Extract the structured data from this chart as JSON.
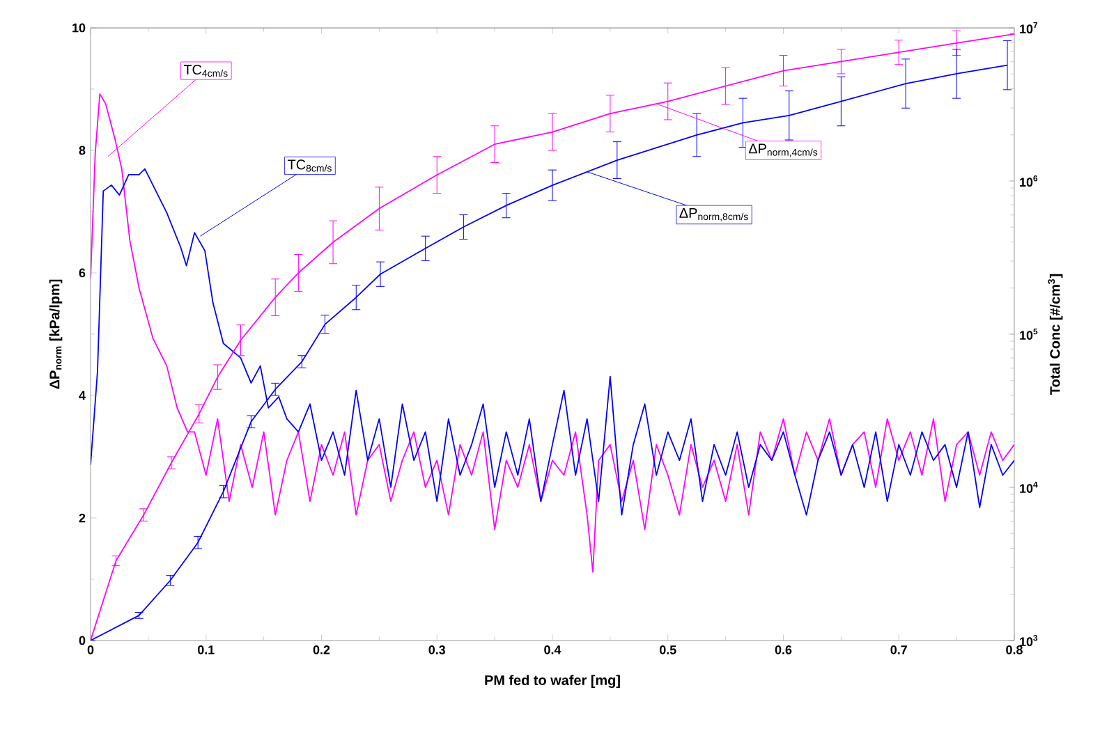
{
  "chart_data": {
    "type": "line",
    "xlabel": "PM fed to wafer  [mg]",
    "ylabel": "ΔP$_{norm}$  [kPa/lpm]",
    "y2label": "Total Conc  [#/cm$^{3}$]",
    "xlim": [
      0,
      0.8
    ],
    "xticks": [
      0,
      0.1,
      0.2,
      0.3,
      0.4,
      0.5,
      0.6,
      0.7,
      0.8
    ],
    "ylim": [
      0,
      10
    ],
    "yticks": [
      0,
      2,
      4,
      6,
      8,
      10
    ],
    "y2lim": [
      1000,
      10000000
    ],
    "y2ticks": [
      {
        "value": 1000,
        "label": "10$^{3}$"
      },
      {
        "value": 10000,
        "label": "10$^{4}$"
      },
      {
        "value": 100000,
        "label": "10$^{5}$"
      },
      {
        "value": 1000000,
        "label": "10$^{6}$"
      },
      {
        "value": 10000000,
        "label": "10$^{7}$"
      }
    ],
    "log": "y2",
    "grid": false,
    "legend": false,
    "marker": "none",
    "line_style": "solid",
    "series": [
      {
        "name": "TC$_{4cm/s}$",
        "color": "#ff00ff",
        "axis": "y2",
        "x": [
          0,
          0.004,
          0.008,
          0.013,
          0.021,
          0.027,
          0.034,
          0.042,
          0.054,
          0.066,
          0.075,
          0.084,
          0.09,
          0.1,
          0.11,
          0.12,
          0.13,
          0.14,
          0.15,
          0.16,
          0.17,
          0.18,
          0.19,
          0.2,
          0.21,
          0.22,
          0.23,
          0.24,
          0.25,
          0.26,
          0.27,
          0.28,
          0.29,
          0.3,
          0.31,
          0.32,
          0.33,
          0.34,
          0.35,
          0.36,
          0.37,
          0.38,
          0.39,
          0.4,
          0.41,
          0.42,
          0.43,
          0.435,
          0.44,
          0.45,
          0.46,
          0.47,
          0.48,
          0.49,
          0.5,
          0.51,
          0.52,
          0.53,
          0.54,
          0.55,
          0.56,
          0.57,
          0.58,
          0.59,
          0.6,
          0.61,
          0.62,
          0.63,
          0.64,
          0.65,
          0.66,
          0.67,
          0.68,
          0.69,
          0.7,
          0.71,
          0.72,
          0.73,
          0.74,
          0.75,
          0.76,
          0.77,
          0.78,
          0.79,
          0.8
        ],
        "values": [
          230000.0,
          1500000.0,
          3700000.0,
          3200000.0,
          1900000.0,
          1200000.0,
          410000.0,
          200000.0,
          94000.0,
          62000.0,
          33000.0,
          23000.0,
          23000.0,
          12000.0,
          28000.0,
          8100.0,
          19000.0,
          10000.0,
          23000.0,
          6600.0,
          15000.0,
          23000.0,
          8100.0,
          19000.0,
          12000.0,
          23000.0,
          6600.0,
          15000.0,
          19000.0,
          8100.0,
          15000.0,
          23000.0,
          10000.0,
          15000.0,
          6600.0,
          19000.0,
          12000.0,
          23000.0,
          5300.0,
          15000.0,
          10000.0,
          19000.0,
          8100.0,
          15000.0,
          12000.0,
          23000.0,
          6600.0,
          2800.0,
          15000.0,
          19000.0,
          8100.0,
          15000.0,
          5300.0,
          19000.0,
          12000.0,
          6600.0,
          19000.0,
          10000.0,
          15000.0,
          8100.0,
          19000.0,
          6600.0,
          23000.0,
          15000.0,
          28000.0,
          12000.0,
          23000.0,
          15000.0,
          28000.0,
          12000.0,
          19000.0,
          23000.0,
          10000.0,
          28000.0,
          15000.0,
          23000.0,
          12000.0,
          28000.0,
          8100.0,
          19000.0,
          23000.0,
          12000.0,
          23000.0,
          15000.0,
          19000.0
        ]
      },
      {
        "name": "TC$_{8cm/s}$",
        "color": "#0000ff",
        "axis": "y2",
        "x": [
          0,
          0.006,
          0.011,
          0.018,
          0.025,
          0.033,
          0.042,
          0.047,
          0.054,
          0.066,
          0.078,
          0.083,
          0.09,
          0.099,
          0.106,
          0.115,
          0.13,
          0.139,
          0.147,
          0.154,
          0.163,
          0.17,
          0.18,
          0.19,
          0.2,
          0.21,
          0.22,
          0.23,
          0.24,
          0.25,
          0.26,
          0.27,
          0.28,
          0.29,
          0.3,
          0.31,
          0.32,
          0.33,
          0.34,
          0.35,
          0.36,
          0.37,
          0.38,
          0.39,
          0.4,
          0.41,
          0.42,
          0.43,
          0.44,
          0.45,
          0.46,
          0.47,
          0.48,
          0.49,
          0.5,
          0.51,
          0.52,
          0.53,
          0.54,
          0.55,
          0.56,
          0.57,
          0.58,
          0.59,
          0.6,
          0.61,
          0.62,
          0.63,
          0.64,
          0.65,
          0.66,
          0.67,
          0.68,
          0.69,
          0.7,
          0.71,
          0.72,
          0.73,
          0.74,
          0.75,
          0.76,
          0.77,
          0.78,
          0.79,
          0.8
        ],
        "values": [
          14000.0,
          57000.0,
          860000.0,
          940000.0,
          810000.0,
          1100000.0,
          1100000.0,
          1200000.0,
          940000.0,
          620000.0,
          370000.0,
          280000.0,
          460000.0,
          350000.0,
          160000.0,
          87000.0,
          70000.0,
          48000.0,
          62000.0,
          33000.0,
          39000.0,
          28000.0,
          23000.0,
          35000.0,
          15000.0,
          23000.0,
          12000.0,
          43000.0,
          15000.0,
          28000.0,
          10000.0,
          35000.0,
          15000.0,
          23000.0,
          8100.0,
          28000.0,
          12000.0,
          19000.0,
          35000.0,
          10000.0,
          23000.0,
          12000.0,
          28000.0,
          8100.0,
          19000.0,
          43000.0,
          12000.0,
          28000.0,
          8100.0,
          53000.0,
          6600.0,
          19000.0,
          35000.0,
          12000.0,
          23000.0,
          15000.0,
          28000.0,
          8100.0,
          19000.0,
          12000.0,
          23000.0,
          10000.0,
          19000.0,
          15000.0,
          23000.0,
          12000.0,
          6600.0,
          15000.0,
          23000.0,
          12000.0,
          19000.0,
          10000.0,
          23000.0,
          8100.0,
          19000.0,
          12000.0,
          23000.0,
          15000.0,
          19000.0,
          10000.0,
          23000.0,
          7400.0,
          19000.0,
          12000.0,
          15000.0
        ]
      },
      {
        "name": "ΔP$_{norm,4cm/s}$",
        "color": "#ff00ff",
        "x": [
          0,
          0.022,
          0.046,
          0.07,
          0.094,
          0.11,
          0.13,
          0.16,
          0.18,
          0.21,
          0.25,
          0.3,
          0.35,
          0.4,
          0.45,
          0.5,
          0.55,
          0.6,
          0.65,
          0.7,
          0.75,
          0.8
        ],
        "values": [
          0,
          1.3,
          2.05,
          2.9,
          3.7,
          4.3,
          4.9,
          5.6,
          6.0,
          6.5,
          7.05,
          7.6,
          8.1,
          8.3,
          8.6,
          8.8,
          9.05,
          9.3,
          9.45,
          9.6,
          9.75,
          9.9
        ],
        "errors": [
          null,
          0.08,
          0.1,
          0.1,
          0.15,
          0.2,
          0.25,
          0.3,
          0.3,
          0.35,
          0.35,
          0.3,
          0.3,
          0.3,
          0.3,
          0.3,
          0.3,
          0.25,
          0.2,
          0.2,
          0.2,
          null
        ]
      },
      {
        "name": "ΔP$_{norm,8cm/s}$",
        "color": "#0000ff",
        "x": [
          0,
          0.042,
          0.069,
          0.093,
          0.115,
          0.139,
          0.16,
          0.183,
          0.203,
          0.23,
          0.251,
          0.29,
          0.323,
          0.36,
          0.4,
          0.456,
          0.525,
          0.565,
          0.605,
          0.65,
          0.706,
          0.75,
          0.794
        ],
        "values": [
          0,
          0.41,
          0.98,
          1.6,
          2.43,
          3.57,
          4.1,
          4.55,
          5.16,
          5.6,
          5.98,
          6.4,
          6.75,
          7.1,
          7.43,
          7.84,
          8.25,
          8.45,
          8.57,
          8.8,
          9.09,
          9.25,
          9.39
        ],
        "errors": [
          null,
          0.05,
          0.08,
          0.1,
          0.1,
          0.1,
          0.1,
          0.1,
          0.15,
          0.2,
          0.2,
          0.2,
          0.2,
          0.2,
          0.25,
          0.3,
          0.35,
          0.4,
          0.4,
          0.4,
          0.4,
          0.4,
          0.4
        ]
      }
    ]
  }
}
